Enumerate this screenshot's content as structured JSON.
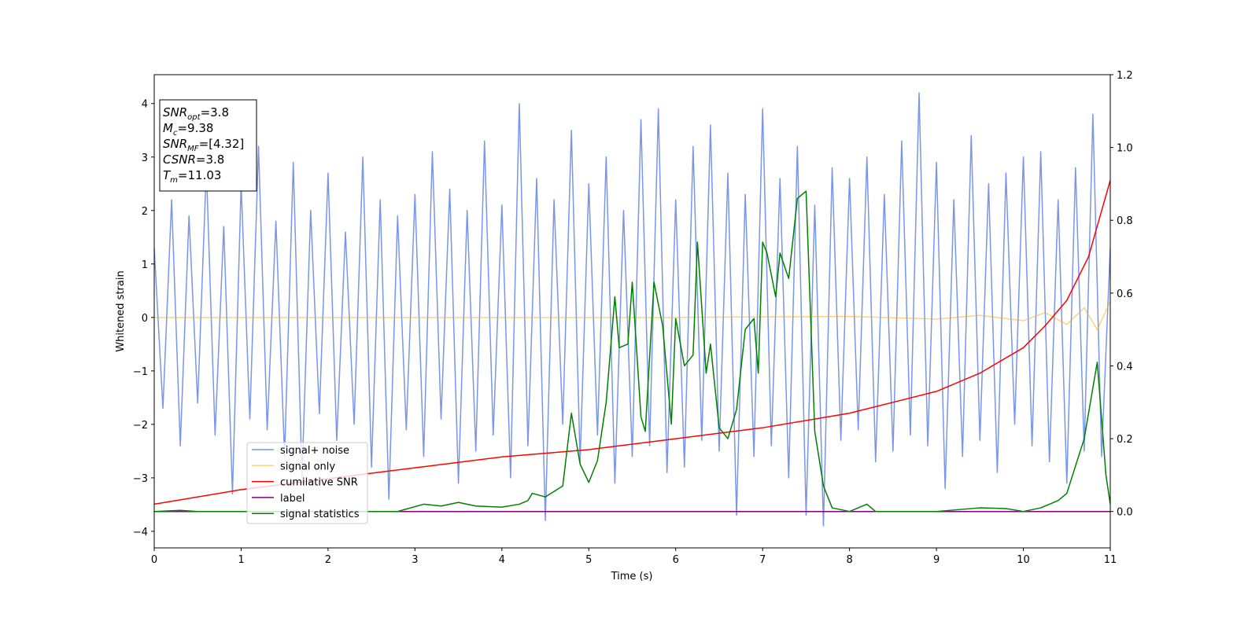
{
  "chart_data": {
    "type": "line",
    "xlabel": "Time (s)",
    "ylabel": "Whitened strain",
    "xlim": [
      0,
      11
    ],
    "xticks": [
      0,
      1,
      2,
      3,
      4,
      5,
      6,
      7,
      8,
      9,
      10,
      11
    ],
    "ylim": [
      -4.31,
      4.54
    ],
    "yticks": [
      {
        "value": -4,
        "label": "−4"
      },
      {
        "value": -3,
        "label": "−3"
      },
      {
        "value": -2,
        "label": "−2"
      },
      {
        "value": -1,
        "label": "−1"
      },
      0,
      1,
      2,
      3,
      4
    ],
    "y2lim": [
      -0.1,
      1.2
    ],
    "y2ticks": [
      {
        "value": 0,
        "label": "0.0"
      },
      0.2,
      0.4,
      0.6,
      0.8,
      {
        "value": 1,
        "label": "1.0"
      },
      1.2
    ],
    "legend": "lower left",
    "annotations": [
      {
        "main": "SNR",
        "sub": "opt",
        "rest": "=3.8"
      },
      {
        "main": "M",
        "sub": "c",
        "rest": "=9.38"
      },
      {
        "main": "SNR",
        "sub": "MF",
        "rest": "=[4.32]"
      },
      {
        "main": "CSNR",
        "rest": "=3.8"
      },
      {
        "main": "T",
        "sub": "m",
        "rest": "=11.03"
      }
    ],
    "series": [
      {
        "name": "signal+ noise",
        "color": "#4169e1",
        "x": [
          0,
          0.1,
          0.2,
          0.3,
          0.4,
          0.5,
          0.6,
          0.7,
          0.8,
          0.9,
          1,
          1.1,
          1.2,
          1.3,
          1.4,
          1.5,
          1.6,
          1.7,
          1.8,
          1.9,
          2,
          2.1,
          2.2,
          2.3,
          2.4,
          2.5,
          2.6,
          2.7,
          2.8,
          2.9,
          3,
          3.1,
          3.2,
          3.3,
          3.4,
          3.5,
          3.6,
          3.7,
          3.8,
          3.9,
          4,
          4.1,
          4.2,
          4.3,
          4.4,
          4.5,
          4.6,
          4.7,
          4.8,
          4.9,
          5,
          5.1,
          5.2,
          5.3,
          5.4,
          5.5,
          5.6,
          5.7,
          5.8,
          5.9,
          6,
          6.1,
          6.2,
          6.3,
          6.4,
          6.5,
          6.6,
          6.7,
          6.8,
          6.9,
          7,
          7.1,
          7.2,
          7.3,
          7.4,
          7.5,
          7.6,
          7.7,
          7.8,
          7.9,
          8,
          8.1,
          8.2,
          8.3,
          8.4,
          8.5,
          8.6,
          8.7,
          8.8,
          8.9,
          9,
          9.1,
          9.2,
          9.3,
          9.4,
          9.5,
          9.6,
          9.7,
          9.8,
          9.9,
          10,
          10.1,
          10.2,
          10.3,
          10.4,
          10.5,
          10.6,
          10.7,
          10.8,
          10.9,
          11
        ],
        "values": [
          1.3,
          -1.7,
          2.2,
          -2.4,
          1.9,
          -1.6,
          2.8,
          -2.2,
          1.7,
          -3.3,
          2.5,
          -1.9,
          3.2,
          -2.1,
          1.8,
          -2.6,
          2.9,
          -3.0,
          2.0,
          -1.8,
          2.7,
          -2.3,
          1.6,
          -2.0,
          3.0,
          -2.8,
          2.2,
          -3.4,
          1.9,
          -2.1,
          2.3,
          -2.6,
          3.1,
          -1.9,
          2.4,
          -3.1,
          2.0,
          -2.5,
          3.3,
          -2.2,
          2.1,
          -3.0,
          4.0,
          -2.4,
          2.6,
          -3.8,
          2.2,
          -2.0,
          3.5,
          -2.7,
          2.5,
          -2.2,
          3.0,
          -3.1,
          2.0,
          -2.6,
          3.7,
          -2.4,
          3.9,
          -2.9,
          2.2,
          -2.8,
          3.2,
          -2.3,
          3.6,
          -2.5,
          2.7,
          -3.7,
          2.3,
          -2.6,
          3.9,
          -2.4,
          2.6,
          -3.0,
          3.2,
          -3.7,
          2.1,
          -3.9,
          2.8,
          -2.3,
          2.6,
          -2.1,
          3.0,
          -2.7,
          2.3,
          -2.5,
          3.3,
          -2.2,
          4.2,
          -2.4,
          2.9,
          -3.2,
          2.2,
          -2.6,
          3.4,
          -2.3,
          2.5,
          -2.9,
          2.7,
          -2.0,
          3.0,
          -2.4,
          3.1,
          -2.7,
          2.2,
          -3.1,
          2.8,
          -2.5,
          3.8,
          -2.6,
          1.3
        ]
      },
      {
        "name": "signal only",
        "color": "#ffa500",
        "x": [
          0,
          2,
          4,
          6,
          8,
          9,
          9.5,
          10,
          10.25,
          10.5,
          10.7,
          10.85,
          11
        ],
        "values": [
          0,
          0,
          0,
          0,
          0.02,
          -0.03,
          0.04,
          -0.06,
          0.09,
          -0.13,
          0.18,
          -0.23,
          0.3
        ]
      },
      {
        "name": "cumilative SNR",
        "color": "#ff0000",
        "axis": "y2",
        "x": [
          0,
          1,
          2,
          3,
          4,
          5,
          6,
          7,
          8,
          9,
          9.5,
          10,
          10.25,
          10.5,
          10.75,
          11
        ],
        "values": [
          0.02,
          0.06,
          0.09,
          0.12,
          0.15,
          0.17,
          0.2,
          0.23,
          0.27,
          0.33,
          0.38,
          0.45,
          0.51,
          0.58,
          0.7,
          0.91
        ]
      },
      {
        "name": "label",
        "color": "#800080",
        "axis": "y2",
        "x": [
          0,
          11
        ],
        "values": [
          0,
          0
        ]
      },
      {
        "name": "signal statistics",
        "color": "#008000",
        "axis": "y2",
        "x": [
          0,
          0.3,
          0.5,
          1,
          2,
          2.8,
          3.1,
          3.3,
          3.5,
          3.7,
          4.0,
          4.2,
          4.3,
          4.35,
          4.5,
          4.7,
          4.8,
          4.9,
          5.0,
          5.1,
          5.2,
          5.3,
          5.35,
          5.45,
          5.5,
          5.6,
          5.65,
          5.75,
          5.85,
          5.95,
          6.0,
          6.1,
          6.2,
          6.25,
          6.35,
          6.4,
          6.5,
          6.6,
          6.7,
          6.8,
          6.9,
          6.95,
          7.0,
          7.05,
          7.15,
          7.2,
          7.3,
          7.4,
          7.5,
          7.6,
          7.7,
          7.8,
          8.0,
          8.2,
          8.3,
          9.0,
          9.5,
          9.8,
          10.0,
          10.2,
          10.4,
          10.5,
          10.7,
          10.85,
          10.95,
          11.0
        ],
        "values": [
          0,
          0.003,
          0,
          0,
          0,
          0,
          0.02,
          0.015,
          0.025,
          0.015,
          0.012,
          0.02,
          0.03,
          0.05,
          0.04,
          0.07,
          0.27,
          0.13,
          0.08,
          0.14,
          0.3,
          0.59,
          0.45,
          0.46,
          0.63,
          0.26,
          0.22,
          0.63,
          0.51,
          0.24,
          0.53,
          0.4,
          0.43,
          0.74,
          0.38,
          0.46,
          0.23,
          0.2,
          0.28,
          0.5,
          0.53,
          0.38,
          0.74,
          0.71,
          0.59,
          0.71,
          0.64,
          0.86,
          0.88,
          0.22,
          0.07,
          0.01,
          0,
          0.02,
          0,
          0,
          0.01,
          0.008,
          0,
          0.01,
          0.03,
          0.05,
          0.2,
          0.41,
          0.1,
          0.02
        ]
      }
    ]
  }
}
